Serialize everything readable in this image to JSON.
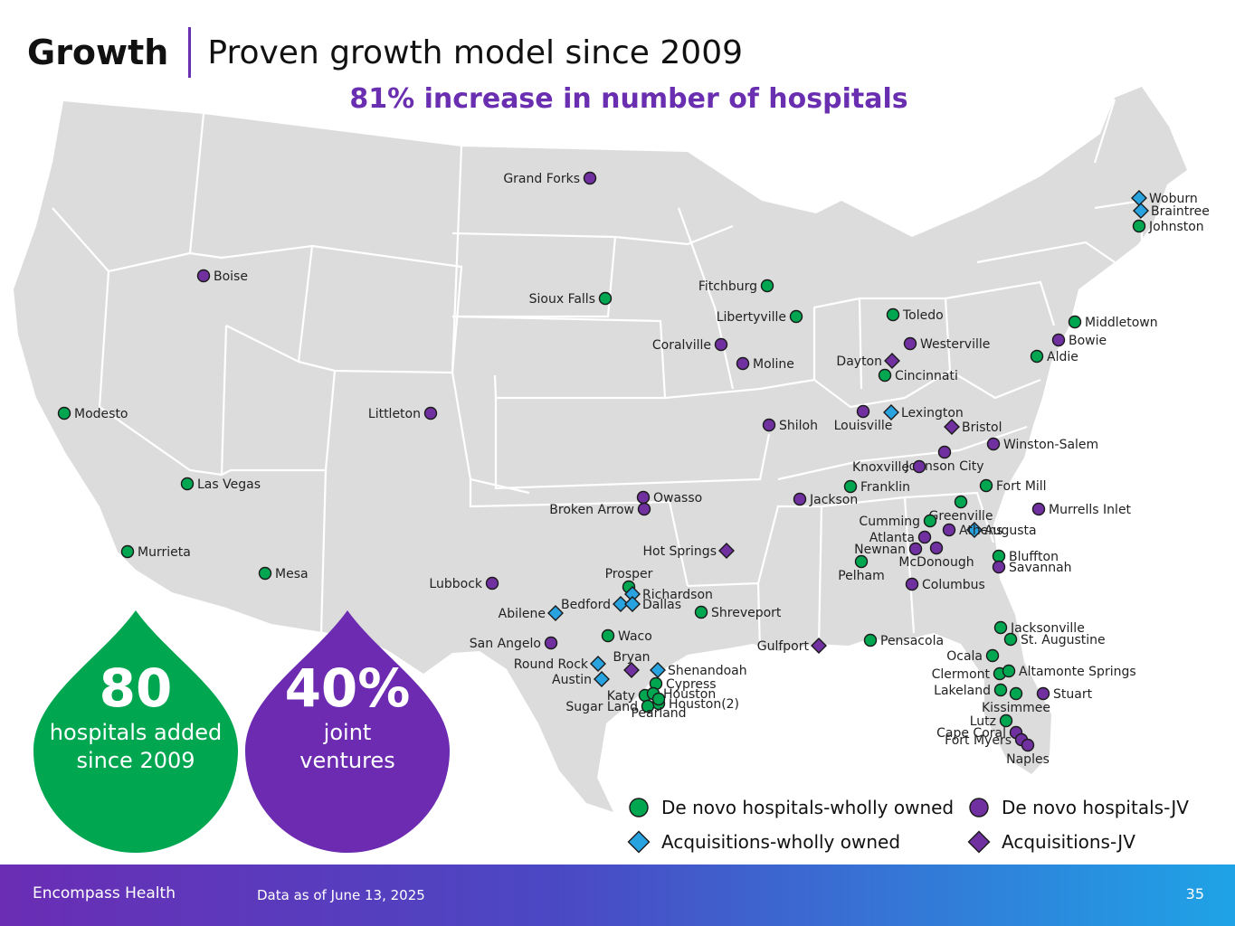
{
  "header": {
    "title": "Growth",
    "subtitle": "Proven growth model since 2009"
  },
  "headline": "81% increase in number of hospitals",
  "colors": {
    "green": "#00a650",
    "purple": "#7030a0",
    "blue": "#29a3e0",
    "map_fill": "#dcdcdc",
    "border": "#ffffff"
  },
  "locations": [
    {
      "name": "Grand Forks",
      "type": "jv",
      "pos": "left"
    },
    {
      "name": "Boise",
      "type": "jv",
      "pos": "right"
    },
    {
      "name": "Sioux Falls",
      "type": "wholly",
      "pos": "left"
    },
    {
      "name": "Fitchburg",
      "type": "wholly",
      "pos": "left"
    },
    {
      "name": "Libertyville",
      "type": "wholly",
      "pos": "left"
    },
    {
      "name": "Coralville",
      "type": "jv",
      "pos": "left"
    },
    {
      "name": "Moline",
      "type": "jv",
      "pos": "right"
    },
    {
      "name": "Modesto",
      "type": "wholly",
      "pos": "right"
    },
    {
      "name": "Littleton",
      "type": "jv",
      "pos": "left"
    },
    {
      "name": "Shiloh",
      "type": "jv",
      "pos": "right"
    },
    {
      "name": "Las Vegas",
      "type": "wholly",
      "pos": "right"
    },
    {
      "name": "Murrieta",
      "type": "wholly",
      "pos": "right"
    },
    {
      "name": "Mesa",
      "type": "wholly",
      "pos": "right"
    },
    {
      "name": "Toledo",
      "type": "wholly",
      "pos": "right"
    },
    {
      "name": "Westerville",
      "type": "jv",
      "pos": "right"
    },
    {
      "name": "Dayton",
      "type": "acq_jv",
      "pos": "left"
    },
    {
      "name": "Cincinnati",
      "type": "wholly",
      "pos": "right"
    },
    {
      "name": "Louisville",
      "type": "jv",
      "pos": "below"
    },
    {
      "name": "Lexington",
      "type": "acq_wholly",
      "pos": "right"
    },
    {
      "name": "Bristol",
      "type": "acq_jv",
      "pos": "right"
    },
    {
      "name": "Winston-Salem",
      "type": "jv",
      "pos": "right"
    },
    {
      "name": "Johnson City",
      "type": "jv",
      "pos": "below"
    },
    {
      "name": "Knoxville",
      "type": "jv",
      "pos": "left"
    },
    {
      "name": "Franklin",
      "type": "wholly",
      "pos": "right"
    },
    {
      "name": "Fort Mill",
      "type": "wholly",
      "pos": "right"
    },
    {
      "name": "Jackson",
      "type": "jv",
      "pos": "right"
    },
    {
      "name": "Owasso",
      "type": "jv",
      "pos": "right"
    },
    {
      "name": "Broken Arrow",
      "type": "jv",
      "pos": "left"
    },
    {
      "name": "Murrells Inlet",
      "type": "jv",
      "pos": "right"
    },
    {
      "name": "Greenville",
      "type": "wholly",
      "pos": "below"
    },
    {
      "name": "Cumming",
      "type": "wholly",
      "pos": "left"
    },
    {
      "name": "Augusta",
      "type": "acq_wholly",
      "pos": "right"
    },
    {
      "name": "Atlanta",
      "type": "jv",
      "pos": "left"
    },
    {
      "name": "Athens",
      "type": "jv",
      "pos": "right"
    },
    {
      "name": "Newnan",
      "type": "jv",
      "pos": "left"
    },
    {
      "name": "McDonough",
      "type": "jv",
      "pos": "below"
    },
    {
      "name": "Hot Springs",
      "type": "acq_jv",
      "pos": "left"
    },
    {
      "name": "Pelham",
      "type": "wholly",
      "pos": "below"
    },
    {
      "name": "Bluffton",
      "type": "wholly",
      "pos": "right"
    },
    {
      "name": "Savannah",
      "type": "jv",
      "pos": "right"
    },
    {
      "name": "Columbus",
      "type": "jv",
      "pos": "right"
    },
    {
      "name": "Lubbock",
      "type": "jv",
      "pos": "left"
    },
    {
      "name": "Prosper",
      "type": "wholly",
      "pos": "above"
    },
    {
      "name": "Richardson",
      "type": "acq_wholly",
      "pos": "right"
    },
    {
      "name": "Bedford",
      "type": "acq_wholly",
      "pos": "left"
    },
    {
      "name": "Dallas",
      "type": "acq_wholly",
      "pos": "right"
    },
    {
      "name": "Shreveport",
      "type": "wholly",
      "pos": "right"
    },
    {
      "name": "Abilene",
      "type": "acq_wholly",
      "pos": "left"
    },
    {
      "name": "Waco",
      "type": "wholly",
      "pos": "right"
    },
    {
      "name": "San Angelo",
      "type": "jv",
      "pos": "left"
    },
    {
      "name": "Pensacola",
      "type": "wholly",
      "pos": "right"
    },
    {
      "name": "Jacksonville",
      "type": "wholly",
      "pos": "right"
    },
    {
      "name": "St. Augustine",
      "type": "wholly",
      "pos": "right"
    },
    {
      "name": "Round Rock",
      "type": "acq_wholly",
      "pos": "left"
    },
    {
      "name": "Bryan",
      "type": "acq_jv",
      "pos": "above"
    },
    {
      "name": "Shenandoah",
      "type": "acq_wholly",
      "pos": "right"
    },
    {
      "name": "Gulfport",
      "type": "acq_jv",
      "pos": "left"
    },
    {
      "name": "Ocala",
      "type": "wholly",
      "pos": "left"
    },
    {
      "name": "Austin",
      "type": "acq_wholly",
      "pos": "left"
    },
    {
      "name": "Cypress",
      "type": "wholly",
      "pos": "right"
    },
    {
      "name": "Clermont",
      "type": "wholly",
      "pos": "left"
    },
    {
      "name": "Altamonte Springs",
      "type": "wholly",
      "pos": "right"
    },
    {
      "name": "Katy",
      "type": "wholly",
      "pos": "left"
    },
    {
      "name": "Houston",
      "type": "wholly",
      "pos": "right"
    },
    {
      "name": "Houston(2)",
      "type": "wholly",
      "pos": "right"
    },
    {
      "name": "Sugar Land",
      "type": "wholly",
      "pos": "left"
    },
    {
      "name": "Pearland",
      "type": "wholly",
      "pos": "below"
    },
    {
      "name": "Lakeland",
      "type": "wholly",
      "pos": "left"
    },
    {
      "name": "Stuart",
      "type": "jv",
      "pos": "right"
    },
    {
      "name": "Kissimmee",
      "type": "wholly",
      "pos": "below"
    },
    {
      "name": "Lutz",
      "type": "wholly",
      "pos": "left"
    },
    {
      "name": "Cape Coral",
      "type": "jv",
      "pos": "left"
    },
    {
      "name": "Fort Myers",
      "type": "jv",
      "pos": "left"
    },
    {
      "name": "Naples",
      "type": "jv",
      "pos": "below"
    },
    {
      "name": "Woburn",
      "type": "acq_wholly",
      "pos": "right"
    },
    {
      "name": "Braintree",
      "type": "acq_wholly",
      "pos": "right"
    },
    {
      "name": "Johnston",
      "type": "wholly",
      "pos": "right"
    },
    {
      "name": "Middletown",
      "type": "wholly",
      "pos": "right"
    },
    {
      "name": "Bowie",
      "type": "jv",
      "pos": "right"
    },
    {
      "name": "Aldie",
      "type": "wholly",
      "pos": "right"
    }
  ],
  "callouts": [
    {
      "value": "80",
      "line1": "hospitals added",
      "line2": "since 2009",
      "color": "#00a650"
    },
    {
      "value": "40%",
      "line1": "joint",
      "line2": "ventures",
      "color": "#6c2bb0"
    }
  ],
  "legend": [
    {
      "label": "De novo hospitals-wholly owned",
      "type": "wholly"
    },
    {
      "label": "De novo hospitals-JV",
      "type": "jv"
    },
    {
      "label": "Acquisitions-wholly owned",
      "type": "acq_wholly"
    },
    {
      "label": "Acquisitions-JV",
      "type": "acq_jv"
    }
  ],
  "footer": {
    "brand": "Encompass Health",
    "note": "Data as of June 13, 2025",
    "page": "35"
  }
}
